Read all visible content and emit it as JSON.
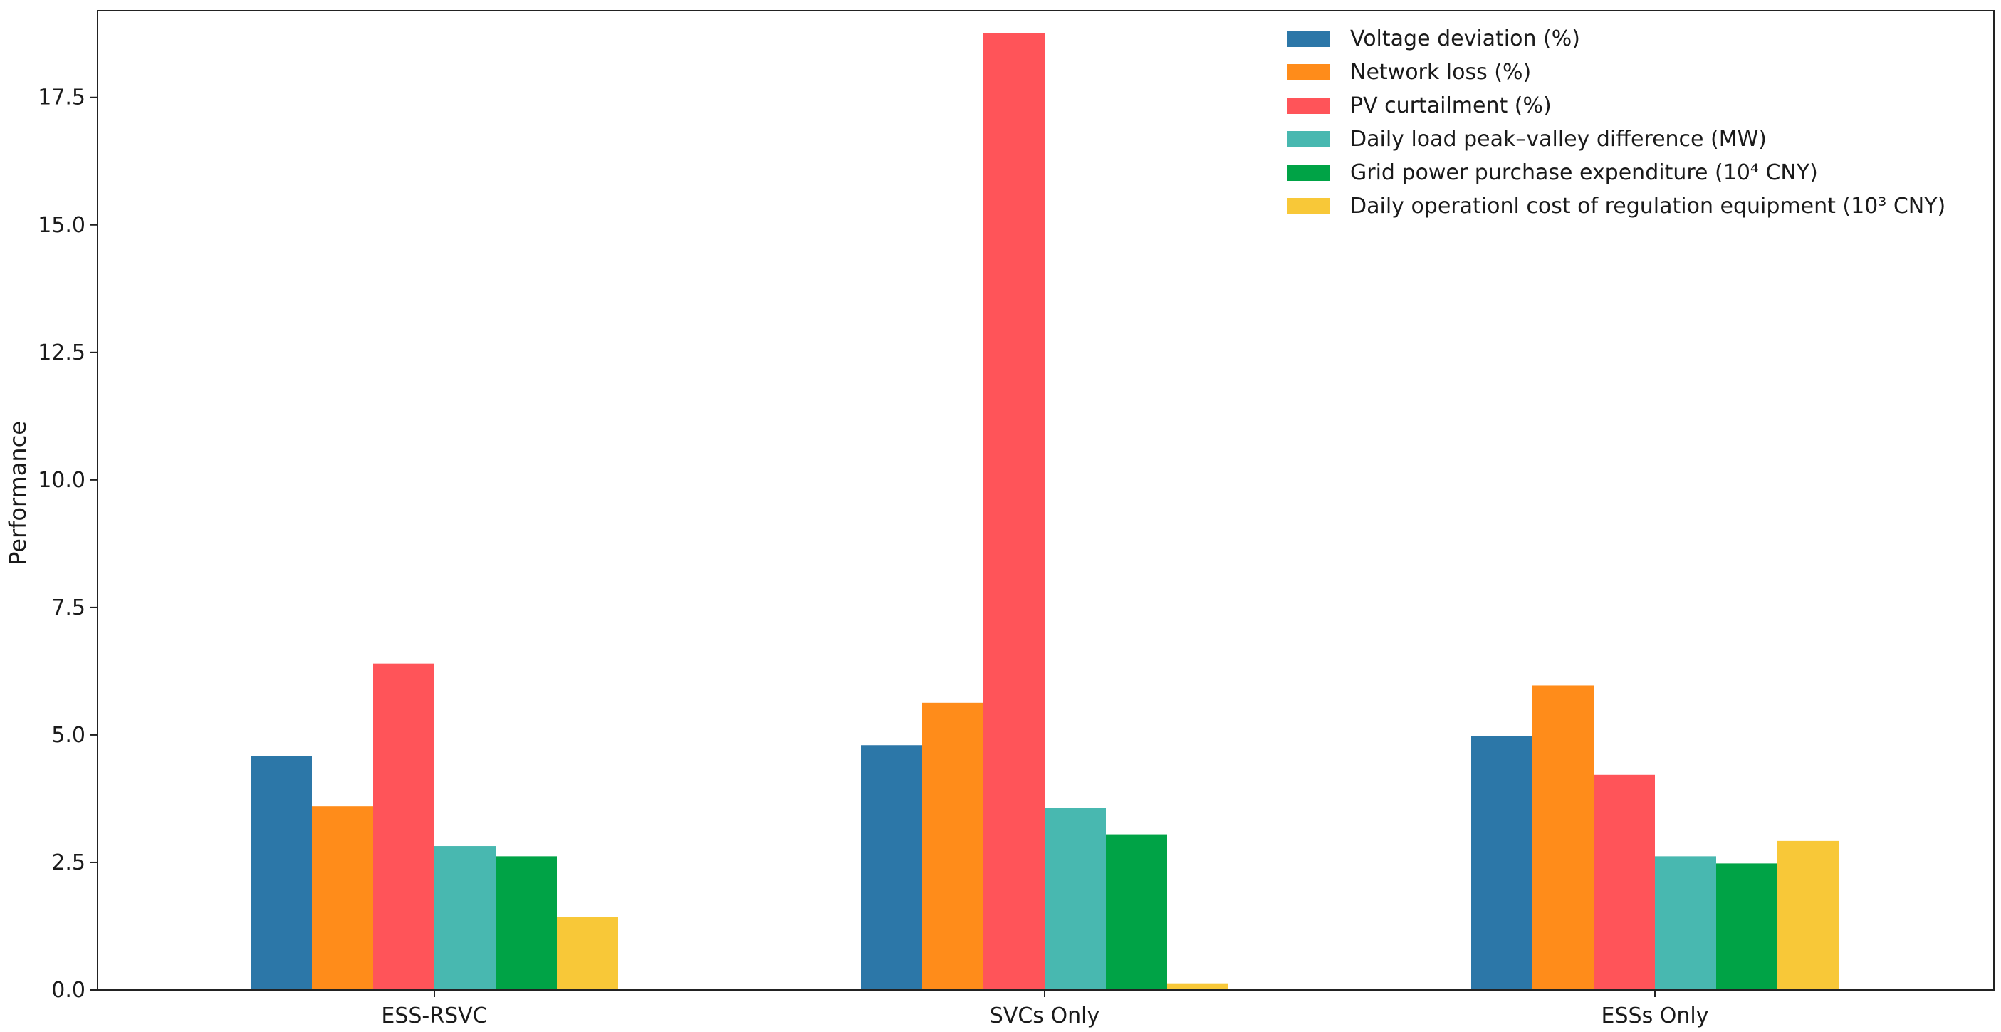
{
  "chart_data": {
    "type": "bar",
    "title": "",
    "xlabel": "",
    "ylabel": "Performance",
    "categories": [
      "ESS-RSVC",
      "SVCs Only",
      "ESSs Only"
    ],
    "ylim": [
      0,
      19.2
    ],
    "yticks": [
      "0.0",
      "2.5",
      "5.0",
      "7.5",
      "10.0",
      "12.5",
      "15.0",
      "17.5"
    ],
    "grid": false,
    "legend_position": "top-right",
    "series": [
      {
        "name": "Voltage deviation (%)",
        "color": "#2c77a8",
        "values": [
          4.58,
          4.8,
          4.98
        ]
      },
      {
        "name": "Network loss (%)",
        "color": "#ff8c1a",
        "values": [
          3.6,
          5.63,
          5.97
        ]
      },
      {
        "name": "PV curtailment (%)",
        "color": "#ff5459",
        "values": [
          6.4,
          18.76,
          4.22
        ]
      },
      {
        "name": "Daily load peak–valley difference (MW)",
        "color": "#48b8b0",
        "values": [
          2.82,
          3.57,
          2.62
        ]
      },
      {
        "name": "Grid power purchase expenditure (10⁴ CNY)",
        "color": "#00a346",
        "values": [
          2.62,
          3.05,
          2.48
        ]
      },
      {
        "name": "Daily operationl cost of regulation equipment (10³ CNY)",
        "color": "#f8c838",
        "values": [
          1.43,
          0.13,
          2.92
        ]
      }
    ]
  }
}
